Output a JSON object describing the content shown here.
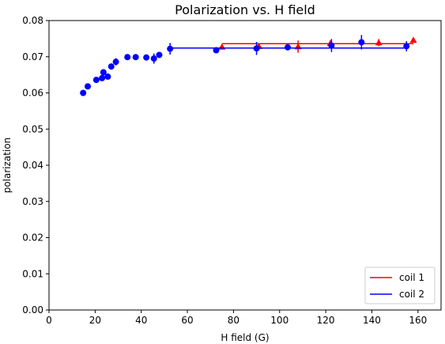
{
  "chart_data": {
    "type": "scatter",
    "title": "Polarization vs. H field",
    "xlabel": "H field (G)",
    "ylabel": "polarization",
    "xlim": [
      0,
      170
    ],
    "ylim": [
      0,
      0.08
    ],
    "xticks": [
      0,
      20,
      40,
      60,
      80,
      100,
      120,
      140,
      160
    ],
    "yticks": [
      0.0,
      0.01,
      0.02,
      0.03,
      0.04,
      0.05,
      0.06,
      0.07,
      0.08
    ],
    "xtick_labels": [
      "0",
      "20",
      "40",
      "60",
      "80",
      "100",
      "120",
      "140",
      "160"
    ],
    "ytick_labels": [
      "0.00",
      "0.01",
      "0.02",
      "0.03",
      "0.04",
      "0.05",
      "0.06",
      "0.07",
      "0.08"
    ],
    "grid": false,
    "legend_position": "lower-right",
    "series": [
      {
        "name": "coil 1",
        "color": "#ff0000",
        "marker": "triangle",
        "points": [
          {
            "x": 75,
            "y": 0.0727,
            "err": 0.0006
          },
          {
            "x": 91,
            "y": 0.0729,
            "err": 0.0006
          },
          {
            "x": 108,
            "y": 0.0728,
            "err": 0.0017
          },
          {
            "x": 122,
            "y": 0.0737,
            "err": 0.0008
          },
          {
            "x": 143,
            "y": 0.0739,
            "err": 0.001
          },
          {
            "x": 158,
            "y": 0.0746,
            "err": 0.0005
          }
        ],
        "fit_line": {
          "x": [
            75,
            158
          ],
          "y": [
            0.0736,
            0.0736
          ]
        }
      },
      {
        "name": "coil 2",
        "color": "#0000ff",
        "marker": "circle",
        "points": [
          {
            "x": 14.8,
            "y": 0.06,
            "err": 0.0006
          },
          {
            "x": 16.8,
            "y": 0.0618,
            "err": 0.0006
          },
          {
            "x": 20.5,
            "y": 0.0636,
            "err": 0.0006
          },
          {
            "x": 23.0,
            "y": 0.0641,
            "err": 0.0006
          },
          {
            "x": 23.6,
            "y": 0.0657,
            "err": 0.0006
          },
          {
            "x": 25.5,
            "y": 0.0645,
            "err": 0.0006
          },
          {
            "x": 27.0,
            "y": 0.0673,
            "err": 0.0006
          },
          {
            "x": 29.0,
            "y": 0.0686,
            "err": 0.001
          },
          {
            "x": 34.0,
            "y": 0.0699,
            "err": 0.0006
          },
          {
            "x": 37.6,
            "y": 0.0699,
            "err": 0.0006
          },
          {
            "x": 42.2,
            "y": 0.0698,
            "err": 0.0008
          },
          {
            "x": 45.5,
            "y": 0.0695,
            "err": 0.0014
          },
          {
            "x": 47.8,
            "y": 0.0705,
            "err": 0.0006
          },
          {
            "x": 52.5,
            "y": 0.0722,
            "err": 0.0016
          },
          {
            "x": 72.5,
            "y": 0.0718,
            "err": 0.0006
          },
          {
            "x": 90.0,
            "y": 0.0723,
            "err": 0.0018
          },
          {
            "x": 103.5,
            "y": 0.0726,
            "err": 0.0006
          },
          {
            "x": 122.5,
            "y": 0.0731,
            "err": 0.0018
          },
          {
            "x": 135.5,
            "y": 0.074,
            "err": 0.002
          },
          {
            "x": 155.0,
            "y": 0.0729,
            "err": 0.0014
          }
        ],
        "fit_line": {
          "x": [
            52.5,
            155
          ],
          "y": [
            0.0724,
            0.0724
          ]
        }
      }
    ]
  }
}
